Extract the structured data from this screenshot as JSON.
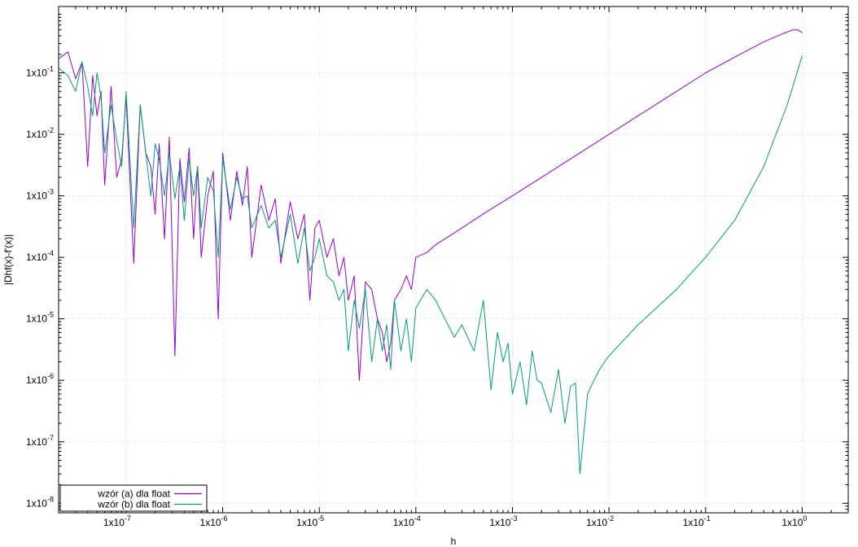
{
  "chart_data": {
    "type": "line",
    "xlabel": "h",
    "ylabel": "|Dhf(x)-f'(x)|",
    "xscale": "log",
    "yscale": "log",
    "xlim": [
      2e-08,
      3.0
    ],
    "ylim": [
      7e-09,
      1.2
    ],
    "grid": true,
    "legend_position": "bottom-left",
    "x_ticks": [
      {
        "value": 1e-07,
        "base": "1x10",
        "exp": "-7"
      },
      {
        "value": 1e-06,
        "base": "1x10",
        "exp": "-6"
      },
      {
        "value": 1e-05,
        "base": "1x10",
        "exp": "-5"
      },
      {
        "value": 0.0001,
        "base": "1x10",
        "exp": "-4"
      },
      {
        "value": 0.001,
        "base": "1x10",
        "exp": "-3"
      },
      {
        "value": 0.01,
        "base": "1x10",
        "exp": "-2"
      },
      {
        "value": 0.1,
        "base": "1x10",
        "exp": "-1"
      },
      {
        "value": 1,
        "base": "1x10",
        "exp": "0"
      }
    ],
    "y_ticks": [
      {
        "value": 0.1,
        "base": "1x10",
        "exp": "-1"
      },
      {
        "value": 0.01,
        "base": "1x10",
        "exp": "-2"
      },
      {
        "value": 0.001,
        "base": "1x10",
        "exp": "-3"
      },
      {
        "value": 0.0001,
        "base": "1x10",
        "exp": "-4"
      },
      {
        "value": 1e-05,
        "base": "1x10",
        "exp": "-5"
      },
      {
        "value": 1e-06,
        "base": "1x10",
        "exp": "-6"
      },
      {
        "value": 1e-07,
        "base": "1x10",
        "exp": "-7"
      },
      {
        "value": 1e-08,
        "base": "1x10",
        "exp": "-8"
      }
    ],
    "series": [
      {
        "name": "wzór (a) dla float",
        "color": "#9400d3",
        "x": [
          2e-08,
          2.5e-08,
          3e-08,
          3.5e-08,
          4e-08,
          4.5e-08,
          5e-08,
          5.5e-08,
          6e-08,
          7e-08,
          8e-08,
          9e-08,
          1e-07,
          1.2e-07,
          1.4e-07,
          1.6e-07,
          1.8e-07,
          2e-07,
          2.2e-07,
          2.5e-07,
          2.8e-07,
          3.2e-07,
          3.6e-07,
          4e-07,
          4.5e-07,
          5e-07,
          5.5e-07,
          6e-07,
          7e-07,
          8e-07,
          9e-07,
          1e-06,
          1.2e-06,
          1.4e-06,
          1.6e-06,
          1.8e-06,
          2e-06,
          2.5e-06,
          3e-06,
          3.5e-06,
          4e-06,
          5e-06,
          6e-06,
          7e-06,
          8e-06,
          9e-06,
          1e-05,
          1.2e-05,
          1.4e-05,
          1.6e-05,
          1.8e-05,
          2e-05,
          2.3e-05,
          2.6e-05,
          3e-05,
          3.5e-05,
          4e-05,
          4.5e-05,
          5e-05,
          5.5e-05,
          6e-05,
          7e-05,
          8e-05,
          9e-05,
          0.0001,
          0.00013,
          0.00016,
          0.0002,
          0.0003,
          0.0005,
          0.001,
          0.002,
          0.005,
          0.01,
          0.02,
          0.05,
          0.1,
          0.2,
          0.4,
          0.6,
          0.8,
          0.9,
          1
        ],
        "y": [
          0.17,
          0.22,
          0.08,
          0.15,
          0.003,
          0.09,
          0.02,
          0.05,
          0.0015,
          0.06,
          0.002,
          0.004,
          0.04,
          8e-05,
          0.03,
          0.005,
          0.003,
          0.0005,
          0.007,
          0.0002,
          0.009,
          2.5e-06,
          0.004,
          0.0008,
          0.006,
          0.0002,
          0.003,
          0.0001,
          0.001,
          0.0025,
          1e-05,
          0.005,
          0.0004,
          0.0025,
          0.0007,
          0.003,
          0.0001,
          0.0015,
          0.0004,
          0.0009,
          8e-05,
          0.0008,
          0.0002,
          0.0005,
          2e-05,
          0.0003,
          0.0004,
          0.0001,
          0.0002,
          5e-05,
          0.0001,
          2e-05,
          5e-05,
          1e-06,
          4e-05,
          3e-05,
          1e-05,
          6e-06,
          2e-06,
          4e-06,
          2e-05,
          3e-05,
          5e-05,
          3e-05,
          0.0001,
          0.00012,
          0.00016,
          0.0002,
          0.0003,
          0.00051,
          0.001,
          0.002,
          0.005,
          0.01,
          0.02,
          0.05,
          0.1,
          0.18,
          0.32,
          0.42,
          0.5,
          0.5,
          0.45
        ]
      },
      {
        "name": "wzór (b) dla float",
        "color": "#009e73",
        "x": [
          2e-08,
          2.5e-08,
          3e-08,
          3.5e-08,
          4e-08,
          4.5e-08,
          5e-08,
          5.5e-08,
          6e-08,
          7e-08,
          8e-08,
          9e-08,
          1e-07,
          1.2e-07,
          1.4e-07,
          1.6e-07,
          1.8e-07,
          2e-07,
          2.2e-07,
          2.5e-07,
          2.8e-07,
          3.2e-07,
          3.6e-07,
          4e-07,
          4.5e-07,
          5e-07,
          5.5e-07,
          6e-07,
          7e-07,
          8e-07,
          9e-07,
          1e-06,
          1.2e-06,
          1.4e-06,
          1.6e-06,
          1.8e-06,
          2e-06,
          2.5e-06,
          3e-06,
          3.5e-06,
          4e-06,
          5e-06,
          6e-06,
          7e-06,
          8e-06,
          9e-06,
          1e-05,
          1.2e-05,
          1.4e-05,
          1.6e-05,
          1.8e-05,
          2e-05,
          2.3e-05,
          2.6e-05,
          3e-05,
          3.5e-05,
          4e-05,
          4.5e-05,
          5e-05,
          5.5e-05,
          6e-05,
          7e-05,
          8e-05,
          9e-05,
          0.0001,
          0.00013,
          0.00016,
          0.0002,
          0.00025,
          0.0003,
          0.0004,
          0.0005,
          0.0006,
          0.0007,
          0.0008,
          0.0009,
          0.001,
          0.0012,
          0.0014,
          0.0016,
          0.0018,
          0.002,
          0.0025,
          0.003,
          0.0035,
          0.004,
          0.0045,
          0.005,
          0.006,
          0.007,
          0.008,
          0.009,
          0.01,
          0.02,
          0.05,
          0.1,
          0.2,
          0.4,
          0.7,
          1
        ],
        "y": [
          0.12,
          0.09,
          0.05,
          0.15,
          0.06,
          0.02,
          0.1,
          0.04,
          0.005,
          0.03,
          0.008,
          0.003,
          0.05,
          0.0003,
          0.03,
          0.005,
          0.001,
          0.007,
          0.004,
          0.001,
          0.005,
          0.0009,
          0.003,
          0.0004,
          0.004,
          0.001,
          0.003,
          0.0003,
          0.002,
          0.0012,
          0.0001,
          0.004,
          0.0006,
          0.002,
          0.0009,
          0.001,
          0.0003,
          0.0007,
          0.0003,
          0.0004,
          0.0001,
          0.0005,
          8e-05,
          0.0003,
          6e-05,
          0.0001,
          0.0002,
          5e-05,
          4e-05,
          2e-05,
          3e-05,
          3e-06,
          2e-05,
          7e-06,
          3e-05,
          2e-06,
          1e-05,
          3e-06,
          8e-06,
          1.5e-06,
          2e-05,
          3e-06,
          1e-05,
          2e-06,
          1.5e-05,
          3e-05,
          2e-05,
          1e-05,
          5e-06,
          8e-06,
          3e-06,
          2e-05,
          7e-07,
          6e-06,
          2e-06,
          4e-06,
          6e-07,
          2e-06,
          4e-07,
          3e-06,
          1e-06,
          9e-07,
          3e-07,
          1.5e-06,
          2e-07,
          8e-07,
          9e-07,
          3e-08,
          6e-07,
          1e-06,
          1.5e-06,
          2e-06,
          2.5e-06,
          8e-06,
          3e-05,
          0.0001,
          0.0004,
          0.003,
          0.03,
          0.19
        ]
      }
    ]
  }
}
